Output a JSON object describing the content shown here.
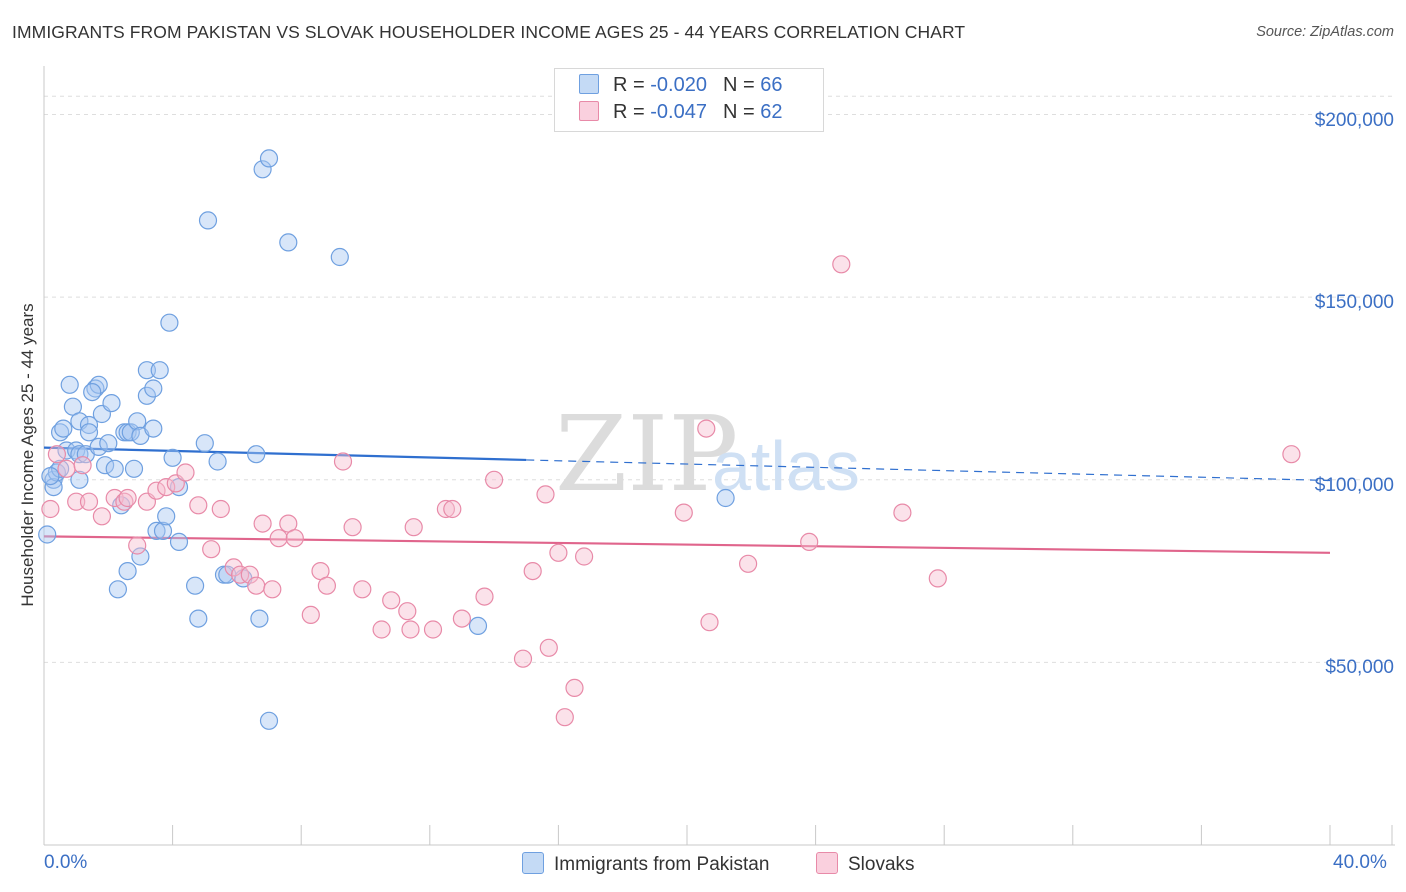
{
  "header": {
    "title": "IMMIGRANTS FROM PAKISTAN VS SLOVAK HOUSEHOLDER INCOME AGES 25 - 44 YEARS CORRELATION CHART",
    "source": "Source: ZipAtlas.com"
  },
  "watermark": {
    "zip": "ZIP",
    "atlas": "atlas"
  },
  "legend": {
    "rows": [
      {
        "r_label": "R = ",
        "r_value": "-0.020",
        "n_label": "N = ",
        "n_value": "66"
      },
      {
        "r_label": "R = ",
        "r_value": "-0.047",
        "n_label": "N = ",
        "n_value": "62"
      }
    ]
  },
  "chart_data": {
    "type": "scatter",
    "title": "IMMIGRANTS FROM PAKISTAN VS SLOVAK HOUSEHOLDER INCOME AGES 25 - 44 YEARS CORRELATION CHART",
    "xlabel": "",
    "ylabel": "Householder Income Ages 25 - 44 years",
    "xlim": [
      0,
      40
    ],
    "ylim": [
      0,
      210000
    ],
    "x_tick_labels": {
      "left": "0.0%",
      "right": "40.0%"
    },
    "y_ticks": [
      {
        "value": 50000,
        "label": "$50,000"
      },
      {
        "value": 100000,
        "label": "$100,000"
      },
      {
        "value": 150000,
        "label": "$150,000"
      },
      {
        "value": 200000,
        "label": "$200,000"
      }
    ],
    "grid": true,
    "series": [
      {
        "name": "Immigrants from Pakistan",
        "color": "#6fa0e0",
        "fill": "#a8c8f2",
        "trend": {
          "start": [
            0,
            108800
          ],
          "end": [
            40,
            99800
          ],
          "solid_until": 15
        },
        "points": [
          [
            0.1,
            85000
          ],
          [
            0.3,
            100000
          ],
          [
            0.3,
            98000
          ],
          [
            0.4,
            102000
          ],
          [
            0.5,
            103000
          ],
          [
            0.5,
            113000
          ],
          [
            0.6,
            114000
          ],
          [
            0.7,
            108000
          ],
          [
            0.8,
            126000
          ],
          [
            0.9,
            120000
          ],
          [
            1.0,
            108000
          ],
          [
            1.1,
            107000
          ],
          [
            1.1,
            116000
          ],
          [
            1.1,
            100000
          ],
          [
            1.3,
            107000
          ],
          [
            1.4,
            115000
          ],
          [
            1.4,
            113000
          ],
          [
            1.6,
            125000
          ],
          [
            1.7,
            126000
          ],
          [
            1.7,
            109000
          ],
          [
            1.8,
            118000
          ],
          [
            1.9,
            104000
          ],
          [
            2.0,
            110000
          ],
          [
            2.1,
            121000
          ],
          [
            2.2,
            103000
          ],
          [
            2.3,
            70000
          ],
          [
            2.4,
            93000
          ],
          [
            2.5,
            113000
          ],
          [
            2.6,
            113000
          ],
          [
            2.7,
            113000
          ],
          [
            2.6,
            75000
          ],
          [
            2.8,
            103000
          ],
          [
            2.9,
            116000
          ],
          [
            3.0,
            112000
          ],
          [
            3.0,
            79000
          ],
          [
            3.2,
            123000
          ],
          [
            3.2,
            130000
          ],
          [
            3.4,
            125000
          ],
          [
            3.4,
            114000
          ],
          [
            3.5,
            86000
          ],
          [
            3.6,
            130000
          ],
          [
            3.7,
            86000
          ],
          [
            3.8,
            90000
          ],
          [
            3.9,
            143000
          ],
          [
            4.0,
            106000
          ],
          [
            4.2,
            98000
          ],
          [
            4.2,
            83000
          ],
          [
            4.7,
            71000
          ],
          [
            4.8,
            62000
          ],
          [
            5.0,
            110000
          ],
          [
            5.1,
            171000
          ],
          [
            5.4,
            105000
          ],
          [
            5.6,
            74000
          ],
          [
            5.7,
            74000
          ],
          [
            6.2,
            73000
          ],
          [
            6.6,
            107000
          ],
          [
            6.7,
            62000
          ],
          [
            6.8,
            185000
          ],
          [
            7.0,
            188000
          ],
          [
            7.0,
            34000
          ],
          [
            7.6,
            165000
          ],
          [
            9.2,
            161000
          ],
          [
            13.5,
            60000
          ],
          [
            21.2,
            95000
          ],
          [
            0.2,
            101000
          ],
          [
            1.5,
            124000
          ]
        ]
      },
      {
        "name": "Slovaks",
        "color": "#e88aa8",
        "fill": "#f6bfd0",
        "trend": {
          "start": [
            0,
            84500
          ],
          "end": [
            40,
            80000
          ],
          "solid_until": 40
        },
        "points": [
          [
            0.2,
            92000
          ],
          [
            0.4,
            107000
          ],
          [
            0.7,
            103000
          ],
          [
            1.0,
            94000
          ],
          [
            1.4,
            94000
          ],
          [
            1.8,
            90000
          ],
          [
            2.2,
            95000
          ],
          [
            2.5,
            94000
          ],
          [
            2.6,
            95000
          ],
          [
            2.9,
            82000
          ],
          [
            3.2,
            94000
          ],
          [
            3.5,
            97000
          ],
          [
            3.8,
            98000
          ],
          [
            4.1,
            99000
          ],
          [
            4.4,
            102000
          ],
          [
            4.8,
            93000
          ],
          [
            5.2,
            81000
          ],
          [
            5.5,
            92000
          ],
          [
            5.9,
            76000
          ],
          [
            6.1,
            74000
          ],
          [
            6.4,
            74000
          ],
          [
            6.6,
            71000
          ],
          [
            6.8,
            88000
          ],
          [
            7.1,
            70000
          ],
          [
            7.3,
            84000
          ],
          [
            7.6,
            88000
          ],
          [
            7.8,
            84000
          ],
          [
            8.3,
            63000
          ],
          [
            8.6,
            75000
          ],
          [
            8.8,
            71000
          ],
          [
            9.3,
            105000
          ],
          [
            9.6,
            87000
          ],
          [
            9.9,
            70000
          ],
          [
            10.5,
            59000
          ],
          [
            10.8,
            67000
          ],
          [
            11.3,
            64000
          ],
          [
            11.4,
            59000
          ],
          [
            11.5,
            87000
          ],
          [
            12.1,
            59000
          ],
          [
            12.5,
            92000
          ],
          [
            12.7,
            92000
          ],
          [
            13.0,
            62000
          ],
          [
            13.7,
            68000
          ],
          [
            14.0,
            100000
          ],
          [
            14.9,
            51000
          ],
          [
            15.2,
            75000
          ],
          [
            15.6,
            96000
          ],
          [
            15.7,
            54000
          ],
          [
            16.0,
            80000
          ],
          [
            16.2,
            35000
          ],
          [
            16.5,
            43000
          ],
          [
            16.8,
            79000
          ],
          [
            19.9,
            91000
          ],
          [
            20.6,
            114000
          ],
          [
            20.7,
            61000
          ],
          [
            21.9,
            77000
          ],
          [
            23.8,
            83000
          ],
          [
            24.8,
            159000
          ],
          [
            26.7,
            91000
          ],
          [
            27.8,
            73000
          ],
          [
            38.8,
            107000
          ],
          [
            1.2,
            104000
          ]
        ]
      }
    ]
  }
}
